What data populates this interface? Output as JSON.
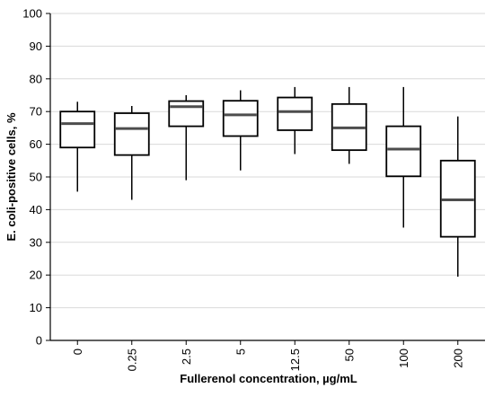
{
  "chart_data": {
    "type": "box",
    "title": "",
    "xlabel": "Fullerenol concentration, µg/mL",
    "ylabel": "E. coli-positive cells, %",
    "ylim": [
      0,
      100
    ],
    "yticks": [
      0,
      10,
      20,
      30,
      40,
      50,
      60,
      70,
      80,
      90,
      100
    ],
    "grid": true,
    "legend": "none",
    "categories": [
      "0",
      "0.25",
      "2.5",
      "5",
      "12.5",
      "50",
      "100",
      "200"
    ],
    "boxes": [
      {
        "min": 45.5,
        "q1": 59.0,
        "median": 66.3,
        "q3": 70.0,
        "max": 73.0
      },
      {
        "min": 43.0,
        "q1": 56.7,
        "median": 64.8,
        "q3": 69.5,
        "max": 71.7
      },
      {
        "min": 49.0,
        "q1": 65.5,
        "median": 71.5,
        "q3": 73.2,
        "max": 75.0
      },
      {
        "min": 52.0,
        "q1": 62.5,
        "median": 69.0,
        "q3": 73.3,
        "max": 76.5
      },
      {
        "min": 57.0,
        "q1": 64.3,
        "median": 70.0,
        "q3": 74.3,
        "max": 77.5
      },
      {
        "min": 54.0,
        "q1": 58.2,
        "median": 65.0,
        "q3": 72.3,
        "max": 77.5
      },
      {
        "min": 34.5,
        "q1": 50.2,
        "median": 58.5,
        "q3": 65.5,
        "max": 77.5
      },
      {
        "min": 19.5,
        "q1": 31.7,
        "median": 43.0,
        "q3": 55.0,
        "max": 68.5
      }
    ]
  }
}
